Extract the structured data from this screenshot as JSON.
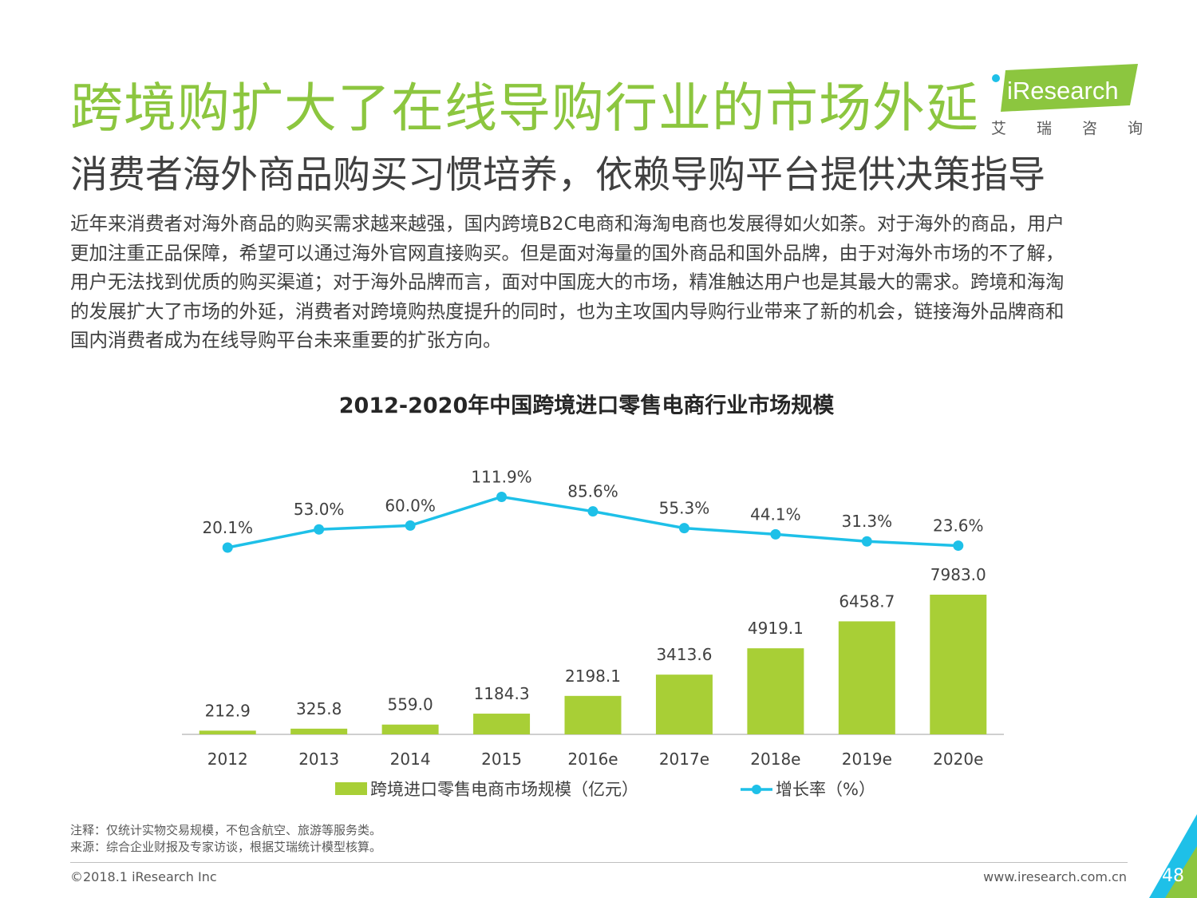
{
  "header": {
    "title": "跨境购扩大了在线导购行业的市场外延",
    "subtitle": "消费者海外商品购买习惯培养，依赖导购平台提供决策指导"
  },
  "logo": {
    "brand": "iResearch",
    "sub_chars": [
      "艾",
      "瑞",
      "咨",
      "询"
    ]
  },
  "body": {
    "lines": [
      "近年来消费者对海外商品的购买需求越来越强，国内跨境B2C电商和海淘电商也发展得如火如荼。对于海外的商品，用户",
      "更加注重正品保障，希望可以通过海外官网直接购买。但是面对海量的国外商品和国外品牌，由于对海外市场的不了解，",
      "用户无法找到优质的购买渠道；对于海外品牌而言，面对中国庞大的市场，精准触达用户也是其最大的需求。跨境和海淘",
      "的发展扩大了市场的外延，消费者对跨境购热度提升的同时，也为主攻国内导购行业带来了新的机会，链接海外品牌商和",
      "国内消费者成为在线导购平台未来重要的扩张方向。"
    ]
  },
  "chart_data": {
    "type": "bar",
    "title": "2012-2020年中国跨境进口零售电商行业市场规模",
    "categories": [
      "2012",
      "2013",
      "2014",
      "2015",
      "2016e",
      "2017e",
      "2018e",
      "2019e",
      "2020e"
    ],
    "series": [
      {
        "name": "跨境进口零售电商市场规模（亿元）",
        "type": "bar",
        "values": [
          212.9,
          325.8,
          559.0,
          1184.3,
          2198.1,
          3413.6,
          4919.1,
          6458.7,
          7983.0
        ],
        "labels": [
          "212.9",
          "325.8",
          "559.0",
          "1184.3",
          "2198.1",
          "3413.6",
          "4919.1",
          "6458.7",
          "7983.0"
        ],
        "color": "#a8cf36"
      },
      {
        "name": "增长率（%）",
        "type": "line",
        "values": [
          20.1,
          53.0,
          60.0,
          111.9,
          85.6,
          55.3,
          44.1,
          31.3,
          23.6
        ],
        "labels": [
          "20.1%",
          "53.0%",
          "60.0%",
          "111.9%",
          "85.6%",
          "55.3%",
          "44.1%",
          "31.3%",
          "23.6%"
        ],
        "color": "#1ec0e8"
      }
    ],
    "legend": "bottom"
  },
  "notes": {
    "note": "注释：仅统计实物交易规模，不包含航空、旅游等服务类。",
    "source": "来源：综合企业财报及专家访谈，根据艾瑞统计模型核算。"
  },
  "footer": {
    "copyright": "©2018.1 iResearch Inc",
    "website": "www.iresearch.com.cn",
    "page": "48"
  },
  "colors": {
    "title_green": "#8cc63f",
    "bar": "#a8cf36",
    "line": "#1ec0e8"
  }
}
